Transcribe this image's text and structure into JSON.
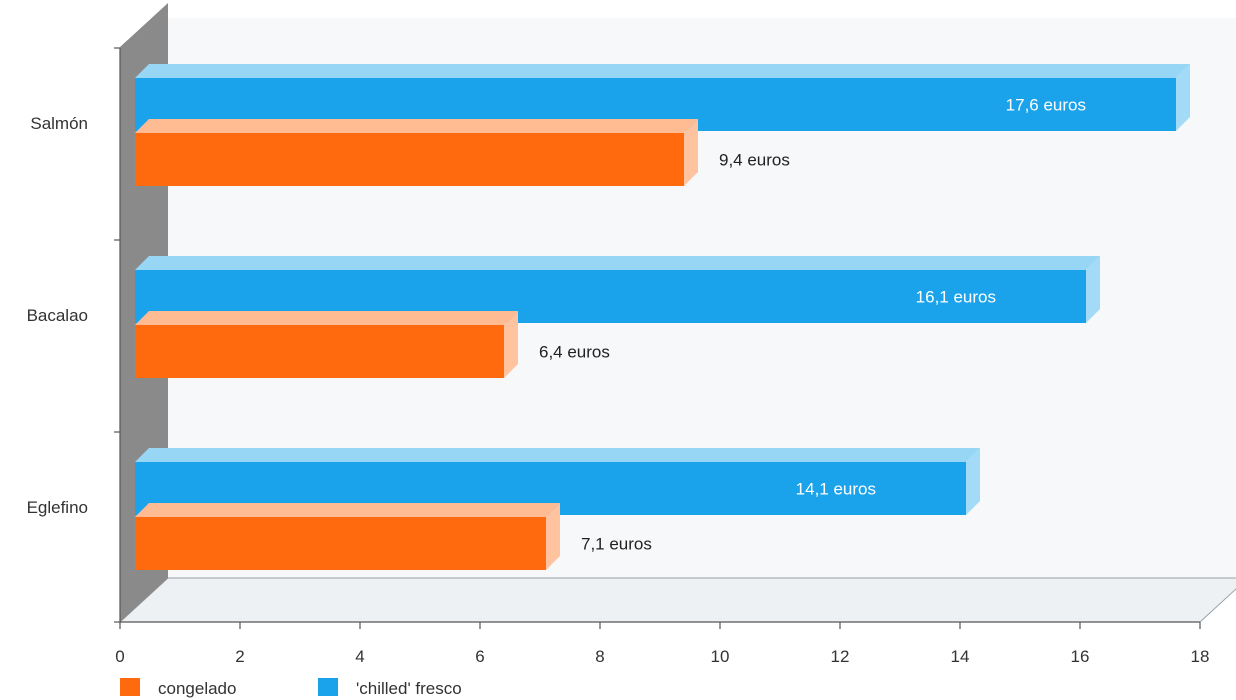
{
  "chart_data": {
    "type": "bar",
    "orientation": "horizontal",
    "style": "3d",
    "categories": [
      "Salmón",
      "Bacalao",
      "Eglefino"
    ],
    "series": [
      {
        "name": "'chilled' fresco",
        "color": "#1aa3ea",
        "values": [
          17.6,
          16.1,
          14.1
        ],
        "labels": [
          "17,6 euros",
          "16,1 euros",
          "14,1 euros"
        ]
      },
      {
        "name": "congelado",
        "color": "#ff6a0f",
        "values": [
          9.4,
          6.4,
          7.1
        ],
        "labels": [
          "9,4 euros",
          "6,4 euros",
          "7,1 euros"
        ]
      }
    ],
    "xlim": [
      0,
      18
    ],
    "xticks": [
      "0",
      "2",
      "4",
      "6",
      "8",
      "10",
      "12",
      "14",
      "16",
      "18"
    ],
    "legend": {
      "position": "bottom-left",
      "entries": [
        {
          "label": "congelado",
          "color": "#ff6a0f"
        },
        {
          "label": "'chilled' fresco",
          "color": "#1aa3ea"
        }
      ]
    },
    "grid": false
  }
}
